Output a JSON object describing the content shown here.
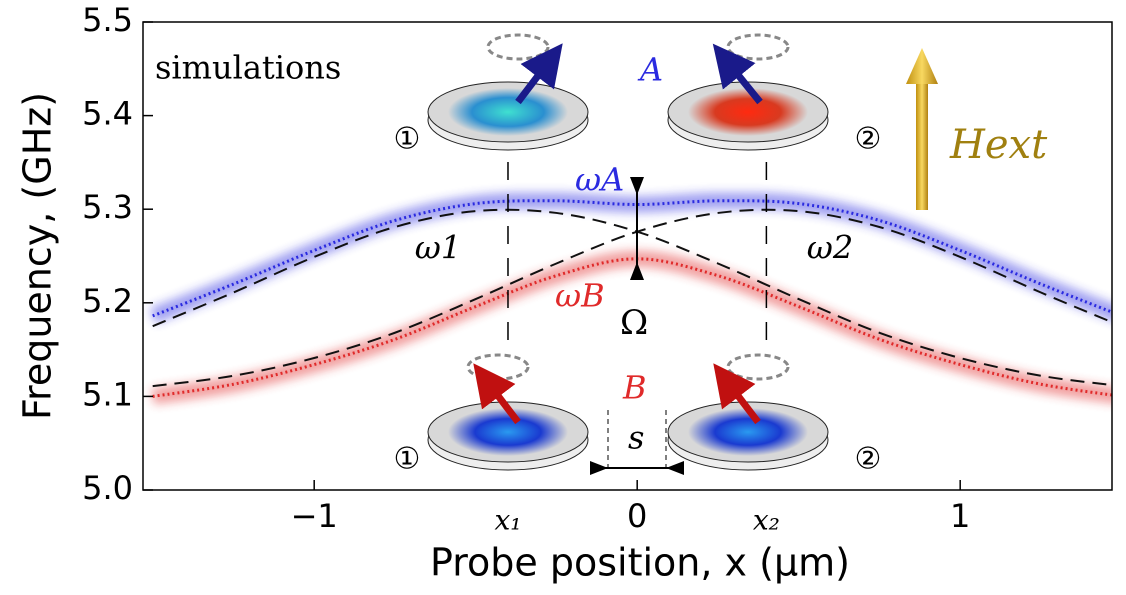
{
  "chart_data": {
    "type": "line",
    "annotation": "simulations",
    "mode_labels": [
      "A",
      "B"
    ],
    "splitting_label": "Ω",
    "separation_label": "s",
    "field_label": "Hext",
    "disk_labels": [
      "①",
      "②"
    ],
    "xlabel": "Probe position, x (μm)",
    "ylabel": "Frequency, (GHz)",
    "x": [
      -1.5,
      -1.25,
      -1,
      -0.75,
      -0.5,
      -0.25,
      0,
      0.25,
      0.5,
      0.75,
      1,
      1.25,
      1.5
    ],
    "series": [
      {
        "name": "ωA",
        "color": "#2a2ae0",
        "style": "glow",
        "values": [
          5.186,
          5.22,
          5.256,
          5.288,
          5.306,
          5.309,
          5.305,
          5.309,
          5.306,
          5.288,
          5.256,
          5.22,
          5.186
        ]
      },
      {
        "name": "ωB",
        "color": "#e02a2a",
        "style": "glow",
        "values": [
          5.1,
          5.113,
          5.134,
          5.161,
          5.196,
          5.229,
          5.247,
          5.229,
          5.196,
          5.161,
          5.134,
          5.113,
          5.1
        ]
      },
      {
        "name": "ω1",
        "color": "#111111",
        "style": "dashed",
        "values": [
          5.175,
          5.211,
          5.249,
          5.281,
          5.298,
          5.296,
          5.276,
          5.242,
          5.204,
          5.168,
          5.141,
          5.122,
          5.111
        ]
      },
      {
        "name": "ω2",
        "color": "#111111",
        "style": "dashed",
        "values": [
          5.111,
          5.122,
          5.141,
          5.168,
          5.204,
          5.242,
          5.276,
          5.296,
          5.298,
          5.281,
          5.249,
          5.211,
          5.175
        ]
      }
    ],
    "xmarks": [
      {
        "value": -0.4,
        "label": "x₁"
      },
      {
        "value": 0.4,
        "label": "x₂"
      }
    ],
    "xlim": [
      -1.53,
      1.47
    ],
    "ylim": [
      5.0,
      5.5
    ],
    "xticks": [
      {
        "value": -1,
        "label": "−1"
      },
      0,
      1
    ],
    "yticks": [
      {
        "value": 5,
        "label": "5.0"
      },
      5.1,
      5.2,
      5.3,
      5.4,
      5.5
    ]
  }
}
